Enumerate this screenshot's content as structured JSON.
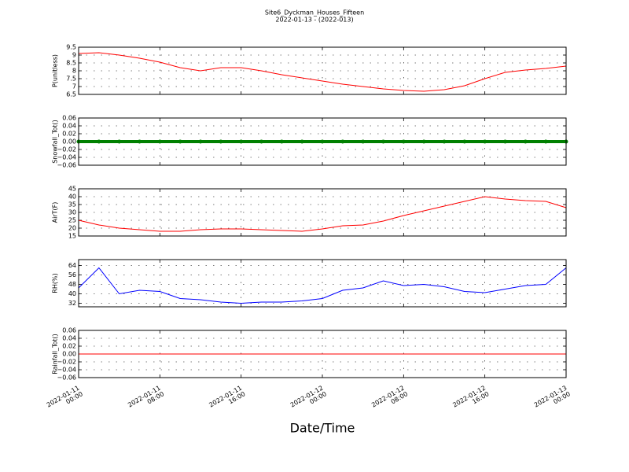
{
  "chart_data": [
    {
      "type": "line",
      "title": "Site6_Dyckman_Houses_Fifteen",
      "subtitle": "2022-01-13 - (2022-013)",
      "y_label": "P(unitless)",
      "x": [
        "2022-01-11 00:00",
        "2022-01-11 02:00",
        "2022-01-11 04:00",
        "2022-01-11 06:00",
        "2022-01-11 08:00",
        "2022-01-11 10:00",
        "2022-01-11 12:00",
        "2022-01-11 14:00",
        "2022-01-11 16:00",
        "2022-01-11 18:00",
        "2022-01-11 20:00",
        "2022-01-11 22:00",
        "2022-01-12 00:00",
        "2022-01-12 02:00",
        "2022-01-12 04:00",
        "2022-01-12 06:00",
        "2022-01-12 08:00",
        "2022-01-12 10:00",
        "2022-01-12 12:00",
        "2022-01-12 14:00",
        "2022-01-12 16:00",
        "2022-01-12 18:00",
        "2022-01-12 20:00",
        "2022-01-12 22:00",
        "2022-01-13 00:00"
      ],
      "series": [
        {
          "name": "P",
          "color": "#ff0000",
          "values": [
            9.1,
            9.15,
            9.0,
            8.8,
            8.55,
            8.2,
            8.0,
            8.2,
            8.2,
            8.0,
            7.75,
            7.55,
            7.35,
            7.15,
            7.0,
            6.85,
            6.75,
            6.7,
            6.8,
            7.05,
            7.5,
            7.9,
            8.05,
            8.15,
            8.3
          ]
        }
      ],
      "xlim": [
        "2022-01-11 00:00",
        "2022-01-13 00:00"
      ],
      "xticks": [
        "2022-01-11 00:00",
        "2022-01-11 08:00",
        "2022-01-11 16:00",
        "2022-01-12 00:00",
        "2022-01-12 08:00",
        "2022-01-12 16:00",
        "2022-01-13 00:00"
      ],
      "ylim": [
        6.5,
        9.5
      ],
      "yticks": [
        6.5,
        7.0,
        7.5,
        8.0,
        8.5,
        9.0,
        9.5
      ],
      "grid": true
    },
    {
      "type": "line",
      "marker": true,
      "y_label": "Snowfall_Tot()",
      "x": [
        "2022-01-11 00:00",
        "2022-01-11 02:00",
        "2022-01-11 04:00",
        "2022-01-11 06:00",
        "2022-01-11 08:00",
        "2022-01-11 10:00",
        "2022-01-11 12:00",
        "2022-01-11 14:00",
        "2022-01-11 16:00",
        "2022-01-11 18:00",
        "2022-01-11 20:00",
        "2022-01-11 22:00",
        "2022-01-12 00:00",
        "2022-01-12 02:00",
        "2022-01-12 04:00",
        "2022-01-12 06:00",
        "2022-01-12 08:00",
        "2022-01-12 10:00",
        "2022-01-12 12:00",
        "2022-01-12 14:00",
        "2022-01-12 16:00",
        "2022-01-12 18:00",
        "2022-01-12 20:00",
        "2022-01-12 22:00",
        "2022-01-13 00:00"
      ],
      "series": [
        {
          "name": "Snowfall_Tot",
          "color": "#008000",
          "values": [
            0,
            0,
            0,
            0,
            0,
            0,
            0,
            0,
            0,
            0,
            0,
            0,
            0,
            0,
            0,
            0,
            0,
            0,
            0,
            0,
            0,
            0,
            0,
            0,
            0
          ]
        }
      ],
      "xlim": [
        "2022-01-11 00:00",
        "2022-01-13 00:00"
      ],
      "xticks": [
        "2022-01-11 00:00",
        "2022-01-11 08:00",
        "2022-01-11 16:00",
        "2022-01-12 00:00",
        "2022-01-12 08:00",
        "2022-01-12 16:00",
        "2022-01-13 00:00"
      ],
      "ylim": [
        -0.06,
        0.06
      ],
      "yticks": [
        {
          "value": -0.06,
          "label": "−0.06"
        },
        {
          "value": -0.04,
          "label": "−0.04"
        },
        {
          "value": -0.02,
          "label": "−0.02"
        },
        {
          "value": 0,
          "label": "0.00"
        },
        0.02,
        0.04,
        0.06
      ],
      "grid": true
    },
    {
      "type": "line",
      "y_label": "AirT(F)",
      "x": [
        "2022-01-11 00:00",
        "2022-01-11 02:00",
        "2022-01-11 04:00",
        "2022-01-11 06:00",
        "2022-01-11 08:00",
        "2022-01-11 10:00",
        "2022-01-11 12:00",
        "2022-01-11 14:00",
        "2022-01-11 16:00",
        "2022-01-11 18:00",
        "2022-01-11 20:00",
        "2022-01-11 22:00",
        "2022-01-12 00:00",
        "2022-01-12 02:00",
        "2022-01-12 04:00",
        "2022-01-12 06:00",
        "2022-01-12 08:00",
        "2022-01-12 10:00",
        "2022-01-12 12:00",
        "2022-01-12 14:00",
        "2022-01-12 16:00",
        "2022-01-12 18:00",
        "2022-01-12 20:00",
        "2022-01-12 22:00",
        "2022-01-13 00:00"
      ],
      "series": [
        {
          "name": "AirT",
          "color": "#ff0000",
          "values": [
            25,
            22,
            20,
            19,
            18,
            18,
            19,
            19.5,
            19.5,
            19,
            18.5,
            18,
            19.5,
            21.5,
            22,
            24.5,
            28,
            31,
            34,
            37,
            40,
            38.5,
            37.5,
            37,
            33
          ]
        }
      ],
      "xlim": [
        "2022-01-11 00:00",
        "2022-01-13 00:00"
      ],
      "xticks": [
        "2022-01-11 00:00",
        "2022-01-11 08:00",
        "2022-01-11 16:00",
        "2022-01-12 00:00",
        "2022-01-12 08:00",
        "2022-01-12 16:00",
        "2022-01-13 00:00"
      ],
      "ylim": [
        15,
        45
      ],
      "yticks": [
        15,
        20,
        25,
        30,
        35,
        40,
        45
      ],
      "grid": true
    },
    {
      "type": "line",
      "y_label": "RH(%)",
      "x": [
        "2022-01-11 00:00",
        "2022-01-11 02:00",
        "2022-01-11 04:00",
        "2022-01-11 06:00",
        "2022-01-11 08:00",
        "2022-01-11 10:00",
        "2022-01-11 12:00",
        "2022-01-11 14:00",
        "2022-01-11 16:00",
        "2022-01-11 18:00",
        "2022-01-11 20:00",
        "2022-01-11 22:00",
        "2022-01-12 00:00",
        "2022-01-12 02:00",
        "2022-01-12 04:00",
        "2022-01-12 06:00",
        "2022-01-12 08:00",
        "2022-01-12 10:00",
        "2022-01-12 12:00",
        "2022-01-12 14:00",
        "2022-01-12 16:00",
        "2022-01-12 18:00",
        "2022-01-12 20:00",
        "2022-01-12 22:00",
        "2022-01-13 00:00"
      ],
      "series": [
        {
          "name": "RH",
          "color": "#0000ff",
          "values": [
            45,
            62,
            40,
            43,
            42,
            36,
            35,
            33,
            32,
            33,
            33,
            34,
            36,
            43,
            45,
            51,
            47,
            48,
            46,
            42,
            41,
            44,
            47,
            48,
            62
          ]
        }
      ],
      "xlim": [
        "2022-01-11 00:00",
        "2022-01-13 00:00"
      ],
      "xticks": [
        "2022-01-11 00:00",
        "2022-01-11 08:00",
        "2022-01-11 16:00",
        "2022-01-12 00:00",
        "2022-01-12 08:00",
        "2022-01-12 16:00",
        "2022-01-13 00:00"
      ],
      "ylim": [
        29,
        69
      ],
      "yticks": [
        32,
        40,
        48,
        56,
        64
      ],
      "grid": true
    },
    {
      "type": "line",
      "y_label": "Rainfall_Tot()",
      "x_label": "Date/Time",
      "x": [
        "2022-01-11 00:00",
        "2022-01-11 02:00",
        "2022-01-11 04:00",
        "2022-01-11 06:00",
        "2022-01-11 08:00",
        "2022-01-11 10:00",
        "2022-01-11 12:00",
        "2022-01-11 14:00",
        "2022-01-11 16:00",
        "2022-01-11 18:00",
        "2022-01-11 20:00",
        "2022-01-11 22:00",
        "2022-01-12 00:00",
        "2022-01-12 02:00",
        "2022-01-12 04:00",
        "2022-01-12 06:00",
        "2022-01-12 08:00",
        "2022-01-12 10:00",
        "2022-01-12 12:00",
        "2022-01-12 14:00",
        "2022-01-12 16:00",
        "2022-01-12 18:00",
        "2022-01-12 20:00",
        "2022-01-12 22:00",
        "2022-01-13 00:00"
      ],
      "series": [
        {
          "name": "Rainfall_Tot",
          "color": "#ff0000",
          "values": [
            0,
            0,
            0,
            0,
            0,
            0,
            0,
            0,
            0,
            0,
            0,
            0,
            0,
            0,
            0,
            0,
            0,
            0,
            0,
            0,
            0,
            0,
            0,
            0,
            0
          ]
        }
      ],
      "xlim": [
        "2022-01-11 00:00",
        "2022-01-13 00:00"
      ],
      "xticks": [
        "2022-01-11 00:00",
        "2022-01-11 08:00",
        "2022-01-11 16:00",
        "2022-01-12 00:00",
        "2022-01-12 08:00",
        "2022-01-12 16:00",
        "2022-01-13 00:00"
      ],
      "ylim": [
        -0.06,
        0.06
      ],
      "yticks": [
        {
          "value": -0.06,
          "label": "−0.06"
        },
        {
          "value": -0.04,
          "label": "−0.04"
        },
        {
          "value": -0.02,
          "label": "−0.02"
        },
        {
          "value": 0,
          "label": "0.00"
        },
        0.02,
        0.04,
        0.06
      ],
      "grid": true
    }
  ]
}
